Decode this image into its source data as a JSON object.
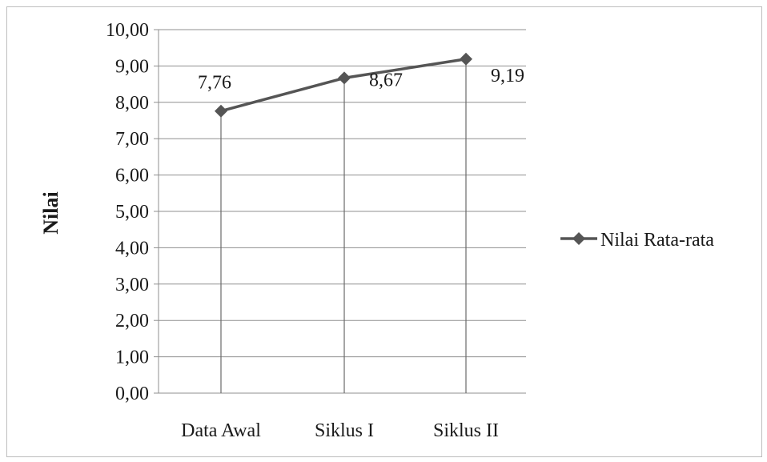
{
  "chart_data": {
    "type": "line",
    "categories": [
      "Data Awal",
      "Siklus I",
      "Siklus II"
    ],
    "series": [
      {
        "name": "Nilai Rata-rata",
        "values": [
          7.76,
          8.67,
          9.19
        ]
      }
    ],
    "data_labels": [
      "7,76",
      "8,67",
      "9,19"
    ],
    "ylabel": "Nilai",
    "xlabel": "",
    "title": "",
    "ylim": [
      0,
      10
    ],
    "y_ticks": [
      "0,00",
      "1,00",
      "2,00",
      "3,00",
      "4,00",
      "5,00",
      "6,00",
      "7,00",
      "8,00",
      "9,00",
      "10,00"
    ],
    "grid": true,
    "drop_lines": true,
    "legend_position": "right",
    "colors": {
      "series": "#555555",
      "grid": "#8f8f8f",
      "text": "#1a1a1a",
      "frame": "#bdbdbd"
    }
  }
}
